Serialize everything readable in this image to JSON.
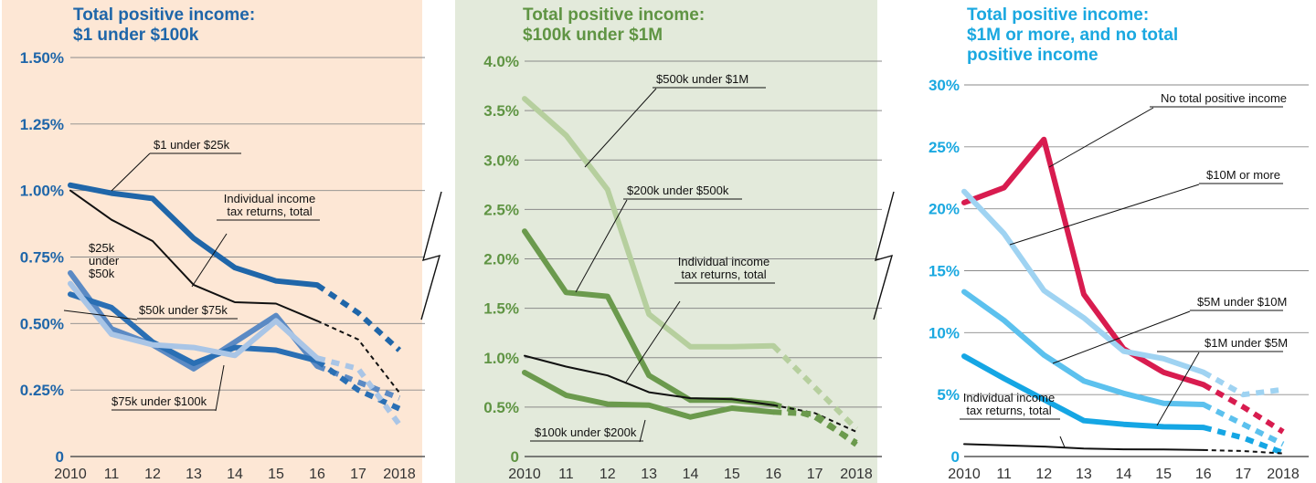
{
  "chart_data": [
    {
      "type": "line",
      "title": "Total positive income:\n$1 under $100k",
      "background": "#fde7d5",
      "title_color": "#1f66a9",
      "ylim": [
        0,
        1.5
      ],
      "yticks": [
        "0",
        "0.25%",
        "0.50%",
        "0.75%",
        "1.00%",
        "1.25%",
        "1.50%"
      ],
      "xticks": [
        "2010",
        "11",
        "12",
        "13",
        "14",
        "15",
        "16",
        "17",
        "2018"
      ],
      "x": [
        2010,
        2011,
        2012,
        2013,
        2014,
        2015,
        2016,
        2017,
        2018
      ],
      "series": [
        {
          "name": "$1 under $25k",
          "values": [
            1.02,
            0.99,
            0.97,
            0.82,
            0.71,
            0.66,
            0.645,
            0.54,
            0.4
          ],
          "color": "#1f66a9",
          "width": 6,
          "projected_from": 2016
        },
        {
          "name": "Individual income tax returns, total",
          "values": [
            1.0,
            0.89,
            0.81,
            0.645,
            0.58,
            0.575,
            0.51,
            0.44,
            0.24
          ],
          "color": "#111111",
          "width": 2,
          "projected_from": 2016
        },
        {
          "name": "$25k under $50k",
          "values": [
            0.69,
            0.48,
            0.42,
            0.33,
            0.43,
            0.53,
            0.34,
            0.28,
            0.22
          ],
          "color": "#5b8ac4",
          "width": 6,
          "projected_from": 2016
        },
        {
          "name": "$50k under $75k",
          "values": [
            0.61,
            0.56,
            0.43,
            0.35,
            0.41,
            0.4,
            0.36,
            0.25,
            0.18
          ],
          "color": "#2a6fb4",
          "width": 6,
          "projected_from": 2016
        },
        {
          "name": "$75k under $100k",
          "values": [
            0.65,
            0.46,
            0.42,
            0.41,
            0.38,
            0.51,
            0.37,
            0.33,
            0.12
          ],
          "color": "#a9c5e6",
          "width": 6,
          "projected_from": 2016
        }
      ]
    },
    {
      "type": "line",
      "title": "Total positive income:\n$100k under $1M",
      "background": "#e3eadb",
      "title_color": "#5f9443",
      "ylim": [
        0,
        4.0
      ],
      "yticks": [
        "0",
        "0.5%",
        "1.0%",
        "1.5%",
        "2.0%",
        "2.5%",
        "3.0%",
        "3.5%",
        "4.0%"
      ],
      "xticks": [
        "2010",
        "11",
        "12",
        "13",
        "14",
        "15",
        "16",
        "17",
        "2018"
      ],
      "x": [
        2010,
        2011,
        2012,
        2013,
        2014,
        2015,
        2016,
        2017,
        2018
      ],
      "series": [
        {
          "name": "$500k under $1M",
          "values": [
            3.62,
            3.25,
            2.7,
            1.44,
            1.11,
            1.11,
            1.12,
            0.7,
            0.28
          ],
          "color": "#b6cf9e",
          "width": 6,
          "projected_from": 2016
        },
        {
          "name": "$200k under $500k",
          "values": [
            2.28,
            1.66,
            1.62,
            0.82,
            0.57,
            0.57,
            0.53,
            0.4,
            0.14
          ],
          "color": "#6b9a4d",
          "width": 6,
          "projected_from": 2016
        },
        {
          "name": "Individual income tax returns, total",
          "values": [
            1.02,
            0.91,
            0.82,
            0.65,
            0.59,
            0.58,
            0.52,
            0.44,
            0.25
          ],
          "color": "#111111",
          "width": 2,
          "projected_from": 2016
        },
        {
          "name": "$100k under $200k",
          "values": [
            0.85,
            0.62,
            0.53,
            0.52,
            0.4,
            0.49,
            0.45,
            0.43,
            0.12
          ],
          "color": "#6b9a4d",
          "width": 6,
          "projected_from": 2016
        }
      ]
    },
    {
      "type": "line",
      "title": "Total positive income:\n$1M or more, and no total\npositive income",
      "background": "#ffffff",
      "title_color": "#1aa8e0",
      "ylim": [
        0,
        30
      ],
      "yticks": [
        "0",
        "5%",
        "10%",
        "15%",
        "20%",
        "25%",
        "30%"
      ],
      "xticks": [
        "2010",
        "11",
        "12",
        "13",
        "14",
        "15",
        "16",
        "17",
        "2018"
      ],
      "x": [
        2010,
        2011,
        2012,
        2013,
        2014,
        2015,
        2016,
        2017,
        2018
      ],
      "series": [
        {
          "name": "No total positive income",
          "values": [
            20.5,
            21.7,
            25.6,
            13.1,
            8.7,
            6.8,
            5.8,
            4.0,
            2.0
          ],
          "color": "#d81c4f",
          "width": 6,
          "projected_from": 2016
        },
        {
          "name": "$10M or more",
          "values": [
            21.4,
            18.0,
            13.4,
            11.2,
            8.5,
            7.9,
            6.8,
            5.0,
            5.4
          ],
          "color": "#9fd3f2",
          "width": 6,
          "projected_from": 2016
        },
        {
          "name": "$5M under $10M",
          "values": [
            13.3,
            11.0,
            8.2,
            6.1,
            5.1,
            4.3,
            4.2,
            2.6,
            1.0
          ],
          "color": "#5cc1ee",
          "width": 6,
          "projected_from": 2016
        },
        {
          "name": "$1M under $5M",
          "values": [
            8.1,
            6.3,
            4.6,
            2.9,
            2.6,
            2.4,
            2.35,
            1.5,
            0.3
          ],
          "color": "#15a6e4",
          "width": 6,
          "projected_from": 2016
        },
        {
          "name": "Individual income tax returns, total",
          "values": [
            1.0,
            0.9,
            0.8,
            0.65,
            0.58,
            0.57,
            0.52,
            0.44,
            0.25
          ],
          "color": "#111111",
          "width": 2,
          "projected_from": 2016
        }
      ]
    }
  ]
}
